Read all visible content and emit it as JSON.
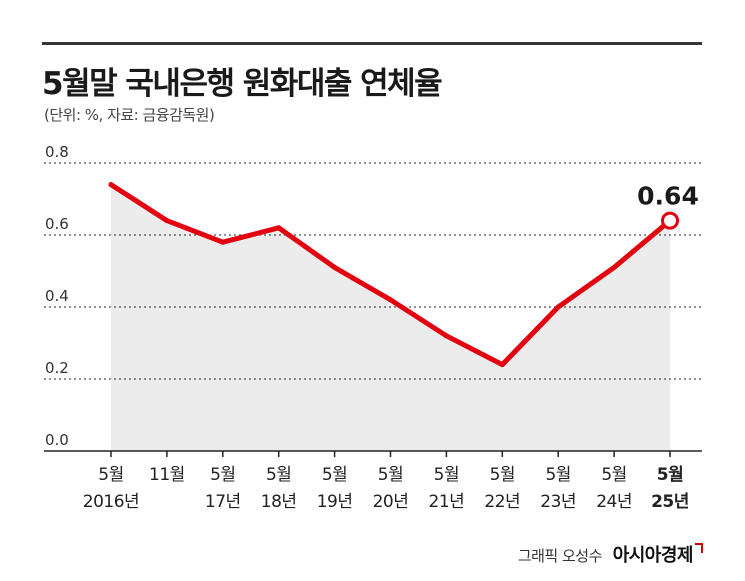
{
  "title": "5월말 국내은행 원화대출 연체율",
  "subtitle": "(단위: %, 자료: 금융감독원)",
  "credit": {
    "designer": "그래픽 오성수",
    "brand": "아시아경제"
  },
  "colors": {
    "line": "#e3000f",
    "area": "#ececec",
    "grid": "#222222",
    "text": "#222222"
  },
  "chart_data": {
    "type": "line",
    "title": "5월말 국내은행 원화대출 연체율",
    "xlabel": "",
    "ylabel": "",
    "ylim": [
      0,
      0.8
    ],
    "yticks": [
      "0.0",
      "0.2",
      "0.4",
      "0.6",
      "0.8"
    ],
    "grid": true,
    "categories": [
      {
        "line1": "5월",
        "line2": "2016년"
      },
      {
        "line1": "11월",
        "line2": ""
      },
      {
        "line1": "5월",
        "line2": "17년"
      },
      {
        "line1": "5월",
        "line2": "18년"
      },
      {
        "line1": "5월",
        "line2": "19년"
      },
      {
        "line1": "5월",
        "line2": "20년"
      },
      {
        "line1": "5월",
        "line2": "21년"
      },
      {
        "line1": "5월",
        "line2": "22년"
      },
      {
        "line1": "5월",
        "line2": "23년"
      },
      {
        "line1": "5월",
        "line2": "24년"
      },
      {
        "line1": "5월",
        "line2": "25년"
      }
    ],
    "series": [
      {
        "name": "원화대출 연체율",
        "values": [
          0.74,
          0.64,
          0.58,
          0.62,
          0.51,
          0.42,
          0.32,
          0.24,
          0.4,
          0.51,
          0.64
        ]
      }
    ],
    "annotation": {
      "index": 10,
      "label": "0.64"
    }
  }
}
